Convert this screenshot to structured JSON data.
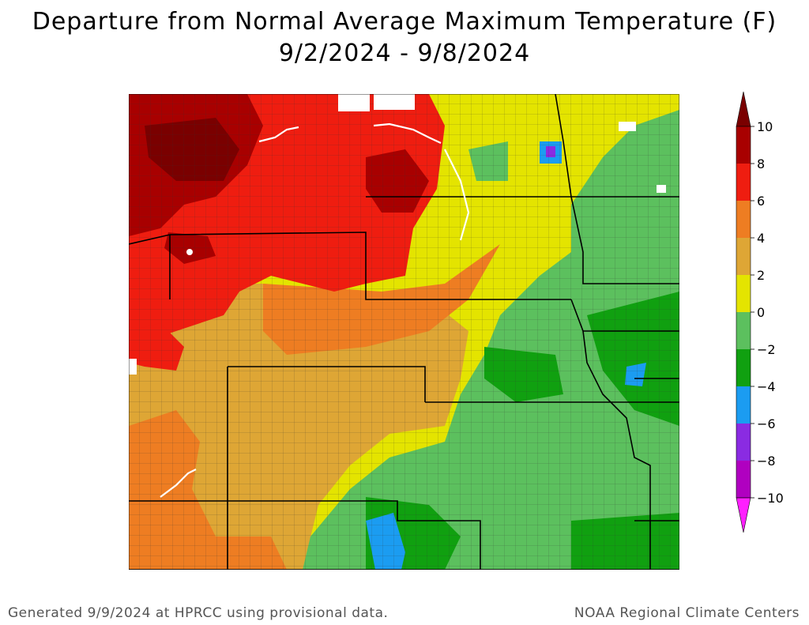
{
  "title": "Departure from Normal Average Maximum Temperature (F)",
  "subtitle": "9/2/2024 - 9/8/2024",
  "legend": {
    "unit": "F",
    "ticks": [
      "10",
      "8",
      "6",
      "4",
      "2",
      "0",
      "−2",
      "−4",
      "−6",
      "−8",
      "−10"
    ],
    "bins": [
      {
        "range": "above 10",
        "color": "#7a0000"
      },
      {
        "range": "8 to 10",
        "color": "#a80000"
      },
      {
        "range": "6 to 8",
        "color": "#ef1d10"
      },
      {
        "range": "4 to 6",
        "color": "#ee7d22"
      },
      {
        "range": "2 to 4",
        "color": "#dea635"
      },
      {
        "range": "0 to 2",
        "color": "#e4e400"
      },
      {
        "range": "-2 to 0",
        "color": "#5cc05e"
      },
      {
        "range": "-4 to -2",
        "color": "#10a010"
      },
      {
        "range": "-6 to -4",
        "color": "#1b9cf1"
      },
      {
        "range": "-8 to -6",
        "color": "#8a2be2"
      },
      {
        "range": "-10 to -8",
        "color": "#b000c0"
      },
      {
        "range": "below -10",
        "color": "#ff20ff"
      }
    ]
  },
  "footer": {
    "left": "Generated 9/9/2024 at HPRCC using provisional data.",
    "right": "NOAA Regional Climate Centers"
  }
}
